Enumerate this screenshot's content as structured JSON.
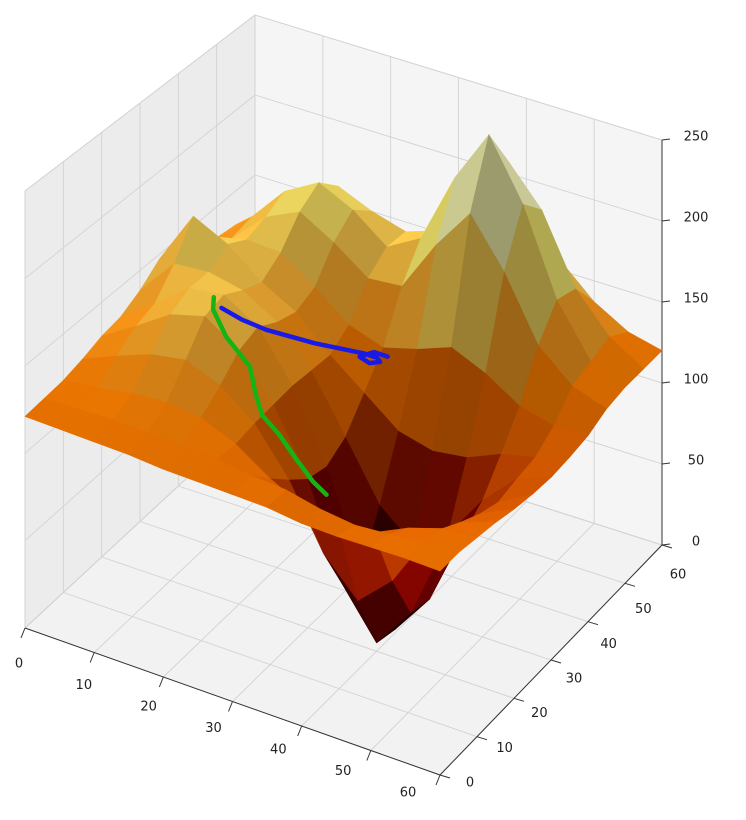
{
  "chart_data": {
    "type": "surface",
    "colormap": "afmhot",
    "grid": true,
    "x": [
      0,
      5,
      10,
      15,
      20,
      25,
      30,
      35,
      40,
      45,
      50,
      55,
      60
    ],
    "y": [
      0,
      5,
      10,
      15,
      20,
      25,
      30,
      35,
      40,
      45,
      50,
      55,
      60
    ],
    "z": [
      [
        121,
        121,
        121,
        121,
        120,
        120,
        120,
        120,
        118,
        118,
        119,
        120,
        120
      ],
      [
        122,
        123,
        124,
        124,
        124,
        123,
        121,
        120,
        116,
        114,
        116,
        119,
        120
      ],
      [
        123,
        126,
        130,
        132,
        130,
        122,
        109,
        99,
        94,
        99,
        109,
        116,
        118
      ],
      [
        126,
        135,
        143,
        147,
        139,
        124,
        98,
        62,
        41,
        60,
        92,
        109,
        116
      ],
      [
        130,
        143,
        157,
        163,
        150,
        125,
        88,
        33,
        5,
        30,
        78,
        103,
        113
      ],
      [
        132,
        147,
        163,
        166,
        154,
        126,
        85,
        31,
        2,
        27,
        73,
        99,
        111
      ],
      [
        138,
        161,
        163,
        159,
        147,
        125,
        92,
        58,
        41,
        55,
        82,
        102,
        110
      ],
      [
        147,
        180,
        170,
        154,
        143,
        124,
        108,
        92,
        87,
        90,
        99,
        104,
        111
      ],
      [
        136,
        158,
        163,
        162,
        148,
        132,
        125,
        131,
        139,
        130,
        117,
        112,
        113
      ],
      [
        129,
        147,
        167,
        177,
        165,
        150,
        152,
        184,
        210,
        181,
        143,
        125,
        118
      ],
      [
        131,
        150,
        173,
        185,
        175,
        159,
        171,
        215,
        248,
        212,
        160,
        129,
        120
      ],
      [
        129,
        145,
        164,
        173,
        164,
        158,
        165,
        198,
        222,
        198,
        156,
        133,
        120
      ],
      [
        125,
        134,
        145,
        150,
        145,
        139,
        142,
        156,
        167,
        156,
        137,
        125,
        120
      ]
    ],
    "xlim": [
      0,
      60
    ],
    "ylim": [
      0,
      60
    ],
    "zlim": [
      0,
      250
    ],
    "xticks": [
      0,
      10,
      20,
      30,
      40,
      50,
      60
    ],
    "yticks": [
      0,
      10,
      20,
      30,
      40,
      50,
      60
    ],
    "zticks": [
      0,
      50,
      100,
      150,
      200,
      250
    ],
    "lines": [
      {
        "color": "#1a1ae6",
        "x": [
          8,
          11,
          14,
          17,
          20,
          23,
          26,
          28,
          29,
          28,
          26,
          27,
          29
        ],
        "y": [
          37,
          37,
          38,
          39,
          40,
          41,
          42,
          42,
          41,
          40,
          41,
          43,
          43
        ],
        "z": [
          125,
          122,
          118,
          116,
          114,
          113,
          112,
          112,
          113,
          113,
          112,
          112,
          112
        ]
      },
      {
        "color": "#14b414",
        "x": [
          13,
          14,
          17,
          21,
          23,
          25,
          28,
          31,
          34,
          36
        ],
        "y": [
          26,
          24,
          22,
          21,
          19,
          17,
          16,
          15,
          14,
          14
        ],
        "z": [
          160,
          158,
          150,
          140,
          130,
          125,
          120,
          112,
          105,
          100
        ]
      }
    ]
  }
}
